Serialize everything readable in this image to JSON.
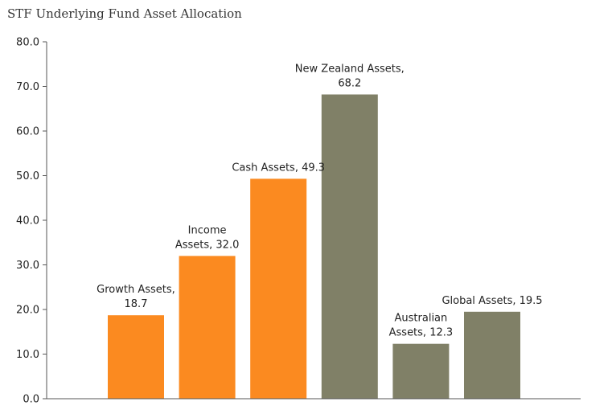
{
  "chart_data": {
    "type": "bar",
    "title": "STF Underlying Fund Asset Allocation",
    "xlabel": "",
    "ylabel": "",
    "ylim": [
      0,
      80
    ],
    "yticks": [
      "0.0",
      "10.0",
      "20.0",
      "30.0",
      "40.0",
      "50.0",
      "60.0",
      "70.0",
      "80.0"
    ],
    "grid": false,
    "legend": "none",
    "categories": [
      "Growth Assets",
      "Income Assets",
      "Cash Assets",
      "New Zealand Assets",
      "Australian Assets",
      "Global Assets"
    ],
    "values": [
      18.7,
      32.0,
      49.3,
      68.2,
      12.3,
      19.5
    ],
    "colors": [
      "#fb8a20",
      "#fb8a20",
      "#fb8a20",
      "#808067",
      "#808067",
      "#808067"
    ],
    "data_labels": [
      [
        "Growth Assets,",
        "18.7"
      ],
      [
        "Income",
        "Assets, 32.0"
      ],
      [
        "Cash Assets, 49.3"
      ],
      [
        "New Zealand Assets,",
        "68.2"
      ],
      [
        "Australian",
        "Assets, 12.3"
      ],
      [
        "Global Assets, 19.5"
      ]
    ]
  }
}
